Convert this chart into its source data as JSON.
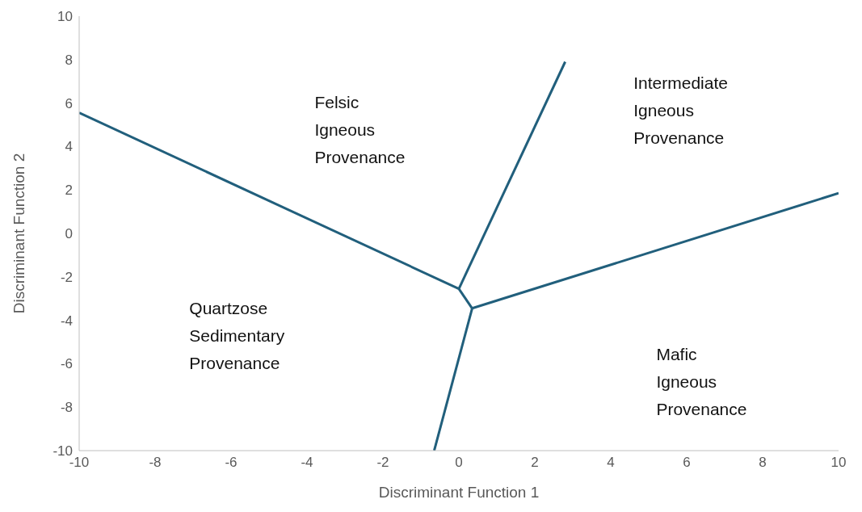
{
  "chart_data": {
    "type": "line",
    "xlabel": "Discriminant Function 1",
    "ylabel": "Discriminant Function 2",
    "xlim": [
      -10,
      10
    ],
    "xticks": [
      -10,
      -8,
      -6,
      -4,
      -2,
      0,
      2,
      4,
      6,
      8,
      10
    ],
    "ylim": [
      -10,
      10
    ],
    "yticks": [
      -10,
      -8,
      -6,
      -4,
      -2,
      0,
      2,
      4,
      6,
      8,
      10
    ],
    "grid": false,
    "marker": "none",
    "line_style": "solid",
    "series": [
      {
        "color": "#215f7c",
        "x": [
          -10,
          0
        ],
        "values": [
          5.55,
          -2.55
        ]
      },
      {
        "color": "#215f7c",
        "x": [
          0,
          2.8
        ],
        "values": [
          -2.55,
          7.9
        ]
      },
      {
        "color": "#215f7c",
        "x": [
          0,
          0.35
        ],
        "values": [
          -2.55,
          -3.45
        ]
      },
      {
        "color": "#215f7c",
        "x": [
          0.35,
          10
        ],
        "values": [
          -3.45,
          1.85
        ]
      },
      {
        "color": "#215f7c",
        "x": [
          0.35,
          -0.65
        ],
        "values": [
          -3.45,
          -10
        ]
      }
    ],
    "annotations": [
      "Felsic Igneous Provenance",
      "Intermediate Igneous Provenance",
      "Quartzose Sedimentary Provenance",
      "Mafic Igneous Provenance"
    ]
  }
}
